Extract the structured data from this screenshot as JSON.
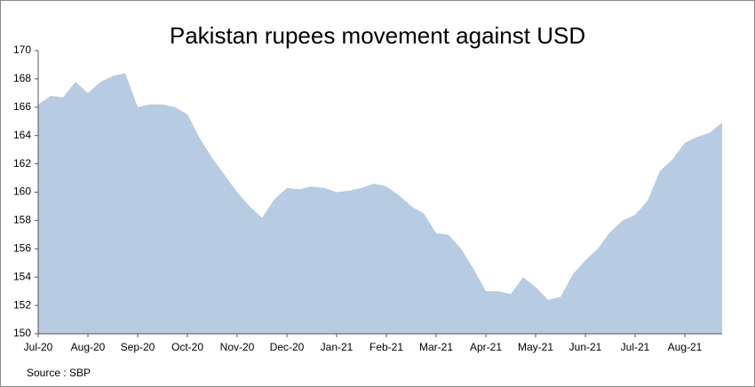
{
  "chart_data": {
    "type": "area",
    "title": "Pakistan rupees movement against USD",
    "source": "Source : SBP",
    "categories": [
      "Jul-20",
      null,
      null,
      null,
      "Aug-20",
      null,
      null,
      null,
      "Sep-20",
      null,
      null,
      null,
      "Oct-20",
      null,
      null,
      null,
      "Nov-20",
      null,
      null,
      null,
      "Dec-20",
      null,
      null,
      null,
      "Jan-21",
      null,
      null,
      null,
      "Feb-21",
      null,
      null,
      null,
      "Mar-21",
      null,
      null,
      null,
      "Apr-21",
      null,
      null,
      null,
      "May-21",
      null,
      null,
      null,
      "Jun-21",
      null,
      null,
      null,
      "Jul-21",
      null,
      null,
      null,
      "Aug-21",
      null,
      null,
      null
    ],
    "values": [
      166.2,
      166.8,
      166.7,
      167.8,
      167.0,
      167.8,
      168.2,
      168.4,
      166.0,
      166.2,
      166.2,
      166.0,
      165.5,
      163.8,
      162.4,
      161.2,
      160.0,
      159.0,
      158.2,
      159.5,
      160.3,
      160.2,
      160.4,
      160.3,
      160.0,
      160.1,
      160.3,
      160.6,
      160.4,
      159.8,
      159.0,
      158.5,
      157.1,
      157.0,
      156.0,
      154.6,
      153.0,
      153.0,
      152.8,
      154.0,
      153.3,
      152.4,
      152.6,
      154.2,
      155.2,
      156.0,
      157.2,
      158.0,
      158.4,
      159.4,
      161.5,
      162.3,
      163.5,
      163.9,
      164.2,
      164.9
    ],
    "color": "#b7cbe3",
    "ylim": [
      150,
      170
    ],
    "yticks": [
      150,
      152,
      154,
      156,
      158,
      160,
      162,
      164,
      166,
      168,
      170
    ]
  }
}
